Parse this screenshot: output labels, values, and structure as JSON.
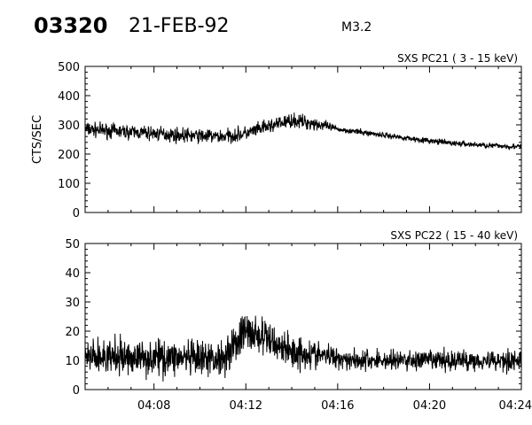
{
  "header": {
    "event_id": "03320",
    "date": "21-FEB-92",
    "flare_class": "M3.2"
  },
  "chart_data": [
    {
      "type": "line",
      "title": "SXS PC21  (  3 - 15 keV)",
      "ylabel": "CTS/SEC",
      "xlabel": "",
      "xlim": [
        "04:05",
        "04:24"
      ],
      "ylim": [
        0,
        500
      ],
      "x_ticks": [
        "04:08",
        "04:12",
        "04:16",
        "04:20",
        "04:24"
      ],
      "y_ticks": [
        0,
        100,
        200,
        300,
        400,
        500
      ],
      "show_x_tick_labels": false,
      "grid": false,
      "series": [
        {
          "x": [
            "04:05",
            "04:06",
            "04:07",
            "04:08",
            "04:09",
            "04:10",
            "04:11",
            "04:12",
            "04:13",
            "04:14",
            "04:15",
            "04:16",
            "04:17",
            "04:18",
            "04:19",
            "04:20",
            "04:21",
            "04:22",
            "04:23",
            "04:24"
          ],
          "values": [
            285,
            280,
            275,
            270,
            265,
            262,
            260,
            270,
            295,
            315,
            305,
            285,
            275,
            265,
            255,
            245,
            237,
            232,
            228,
            225
          ],
          "noise": [
            20,
            20,
            20,
            20,
            20,
            20,
            20,
            20,
            20,
            20,
            20,
            8,
            8,
            8,
            8,
            8,
            8,
            8,
            8,
            8
          ]
        }
      ]
    },
    {
      "type": "line",
      "title": "SXS PC22  ( 15 - 40 keV)",
      "ylabel": "",
      "xlabel": "",
      "xlim": [
        "04:05",
        "04:24"
      ],
      "ylim": [
        0,
        50
      ],
      "x_ticks": [
        "04:08",
        "04:12",
        "04:16",
        "04:20",
        "04:24"
      ],
      "y_ticks": [
        0,
        10,
        20,
        30,
        40,
        50
      ],
      "show_x_tick_labels": true,
      "grid": false,
      "series": [
        {
          "x": [
            "04:05",
            "04:06",
            "04:07",
            "04:08",
            "04:09",
            "04:10",
            "04:11",
            "04:12",
            "04:13",
            "04:14",
            "04:15",
            "04:16",
            "04:17",
            "04:18",
            "04:19",
            "04:20",
            "04:21",
            "04:22",
            "04:23",
            "04:24"
          ],
          "values": [
            11,
            11,
            11,
            11,
            11,
            10,
            11,
            20,
            17,
            13,
            12,
            11,
            10,
            10,
            10,
            10,
            10,
            10,
            10,
            10
          ],
          "noise": [
            5,
            5,
            5,
            5,
            5,
            5,
            5,
            6,
            5,
            5,
            4,
            3,
            3,
            3,
            3,
            3,
            3,
            3,
            3,
            3
          ]
        }
      ]
    }
  ]
}
